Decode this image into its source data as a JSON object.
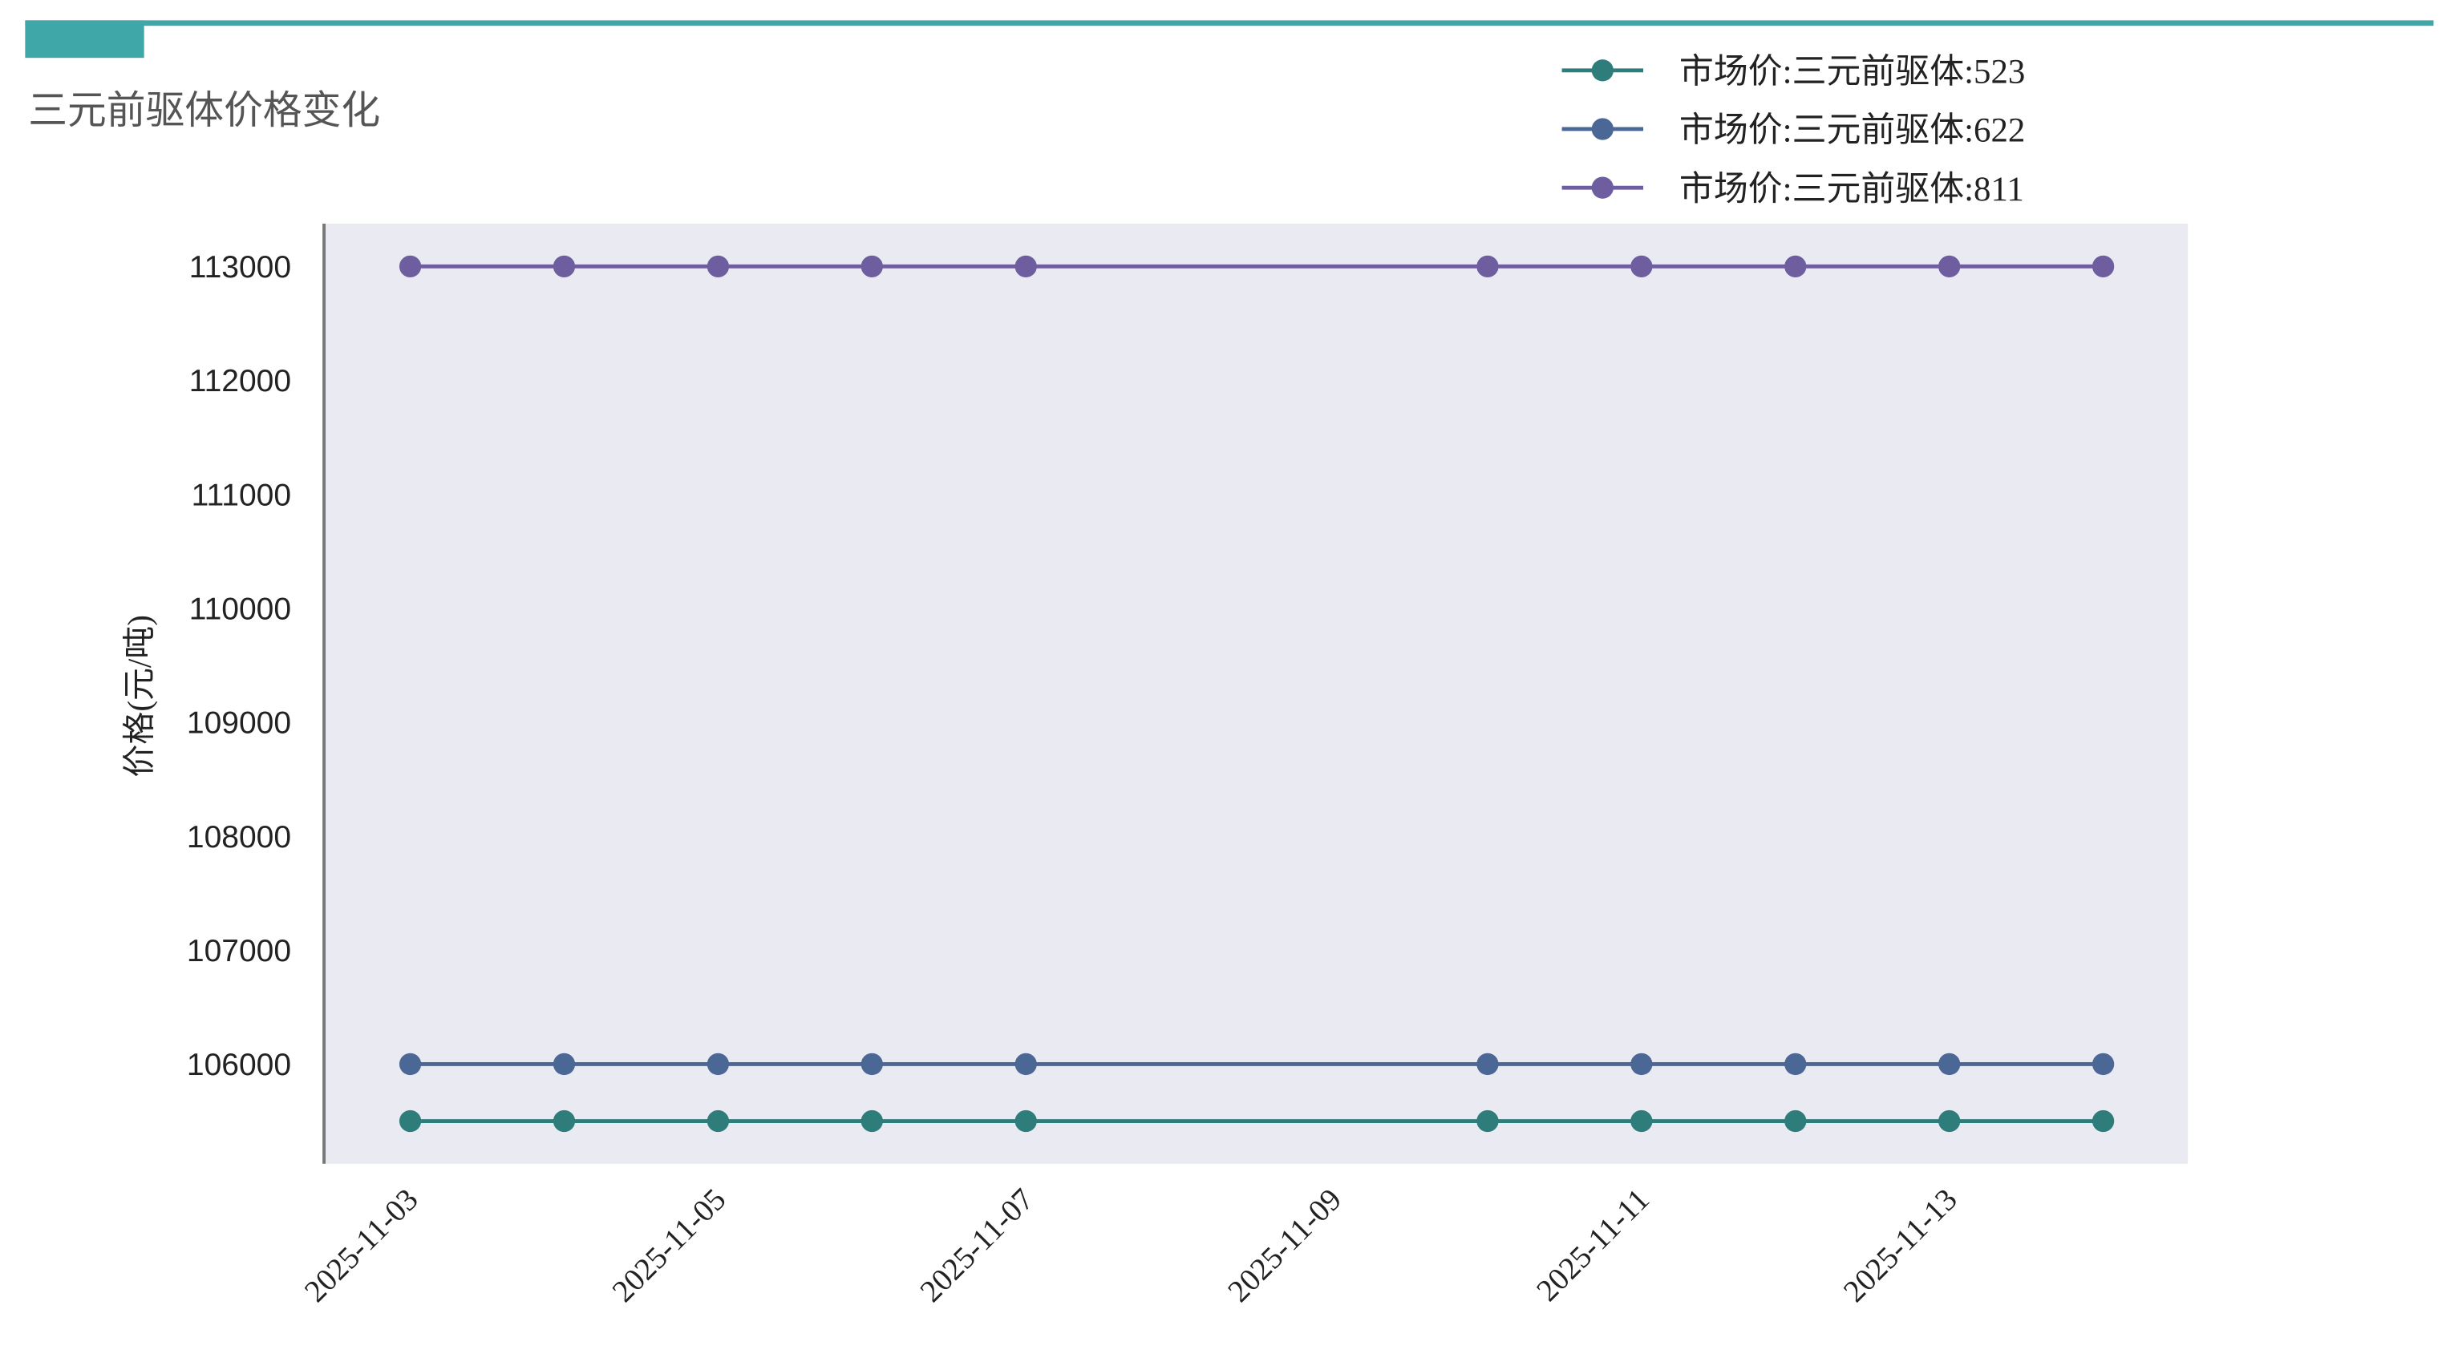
{
  "chart_data": {
    "type": "line",
    "title": "三元前驱体价格变化",
    "y_label": "价格(元/吨)",
    "x": [
      "2025-11-03",
      "2025-11-04",
      "2025-11-05",
      "2025-11-06",
      "2025-11-07",
      "2025-11-10",
      "2025-11-11",
      "2025-11-12",
      "2025-11-13",
      "2025-11-14"
    ],
    "series": [
      {
        "name": "市场价:三元前驱体:523",
        "color": "#2e7d7b",
        "values": [
          105500,
          105500,
          105500,
          105500,
          105500,
          105500,
          105500,
          105500,
          105500,
          105500
        ]
      },
      {
        "name": "市场价:三元前驱体:622",
        "color": "#4a6796",
        "values": [
          106000,
          106000,
          106000,
          106000,
          106000,
          106000,
          106000,
          106000,
          106000,
          106000
        ]
      },
      {
        "name": "市场价:三元前驱体:811",
        "color": "#6e5ea0",
        "values": [
          113000,
          113000,
          113000,
          113000,
          113000,
          113000,
          113000,
          113000,
          113000,
          113000
        ]
      }
    ],
    "xlim": [
      "2025-11-02T10:48",
      "2025-11-14T13:12"
    ],
    "xticks": [
      "2025-11-03",
      "2025-11-05",
      "2025-11-07",
      "2025-11-09",
      "2025-11-11",
      "2025-11-13"
    ],
    "ylim": [
      105125,
      113375
    ],
    "yticks": [
      106000,
      107000,
      108000,
      109000,
      110000,
      111000,
      112000,
      113000
    ],
    "grid": false,
    "legend": "upper right",
    "marker": "circle"
  }
}
